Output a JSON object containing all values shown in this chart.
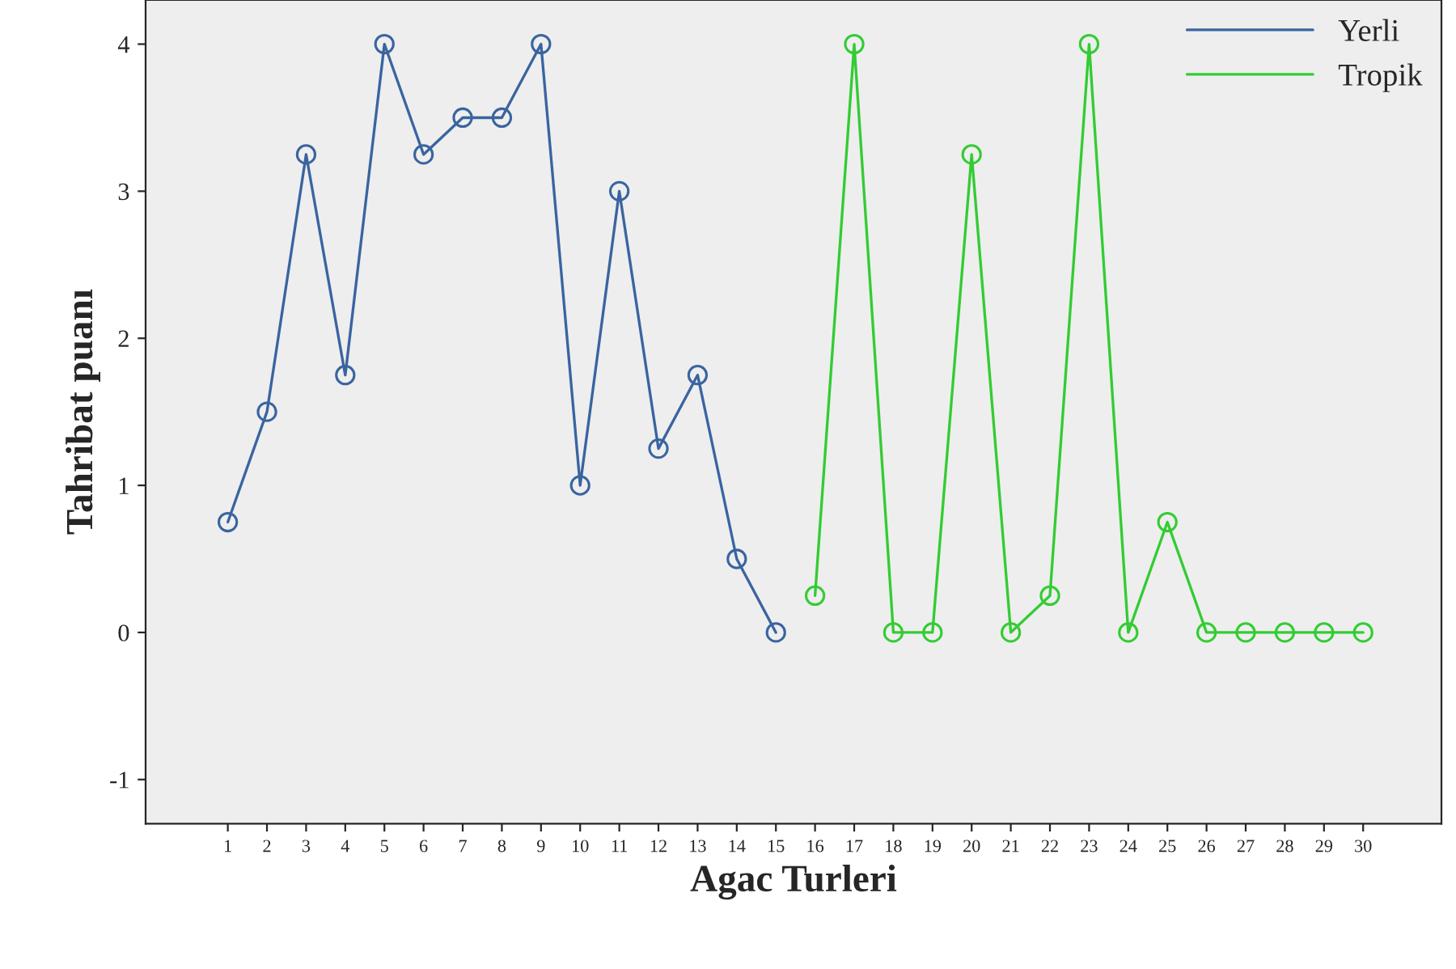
{
  "chart_data": {
    "type": "line",
    "xlabel": "Agac Turleri",
    "ylabel": "Tahribat puanı",
    "categories": [
      "1",
      "2",
      "3",
      "4",
      "5",
      "6",
      "7",
      "8",
      "9",
      "10",
      "11",
      "12",
      "13",
      "14",
      "15",
      "16",
      "17",
      "18",
      "19",
      "20",
      "21",
      "22",
      "23",
      "24",
      "25",
      "26",
      "27",
      "28",
      "29",
      "30"
    ],
    "series": [
      {
        "name": "Yerli",
        "color": "#3a64a0",
        "values": [
          0.75,
          1.5,
          3.25,
          1.75,
          4,
          3.25,
          3.5,
          3.5,
          4,
          1,
          3,
          1.25,
          1.75,
          0.5,
          0,
          null,
          null,
          null,
          null,
          null,
          null,
          null,
          null,
          null,
          null,
          null,
          null,
          null,
          null,
          null
        ]
      },
      {
        "name": "Tropik",
        "color": "#33cc33",
        "values": [
          null,
          null,
          null,
          null,
          null,
          null,
          null,
          null,
          null,
          null,
          null,
          null,
          null,
          null,
          null,
          0.25,
          4,
          0,
          0,
          3.25,
          0,
          0.25,
          4,
          0,
          0.75,
          0,
          0,
          0,
          0,
          0
        ]
      }
    ],
    "ylim": [
      -1.3,
      4.3
    ],
    "yticks": [
      -1,
      0,
      1,
      2,
      3,
      4
    ],
    "marker": "circle",
    "line_style": "solid",
    "legend": "top right",
    "grid": false
  }
}
